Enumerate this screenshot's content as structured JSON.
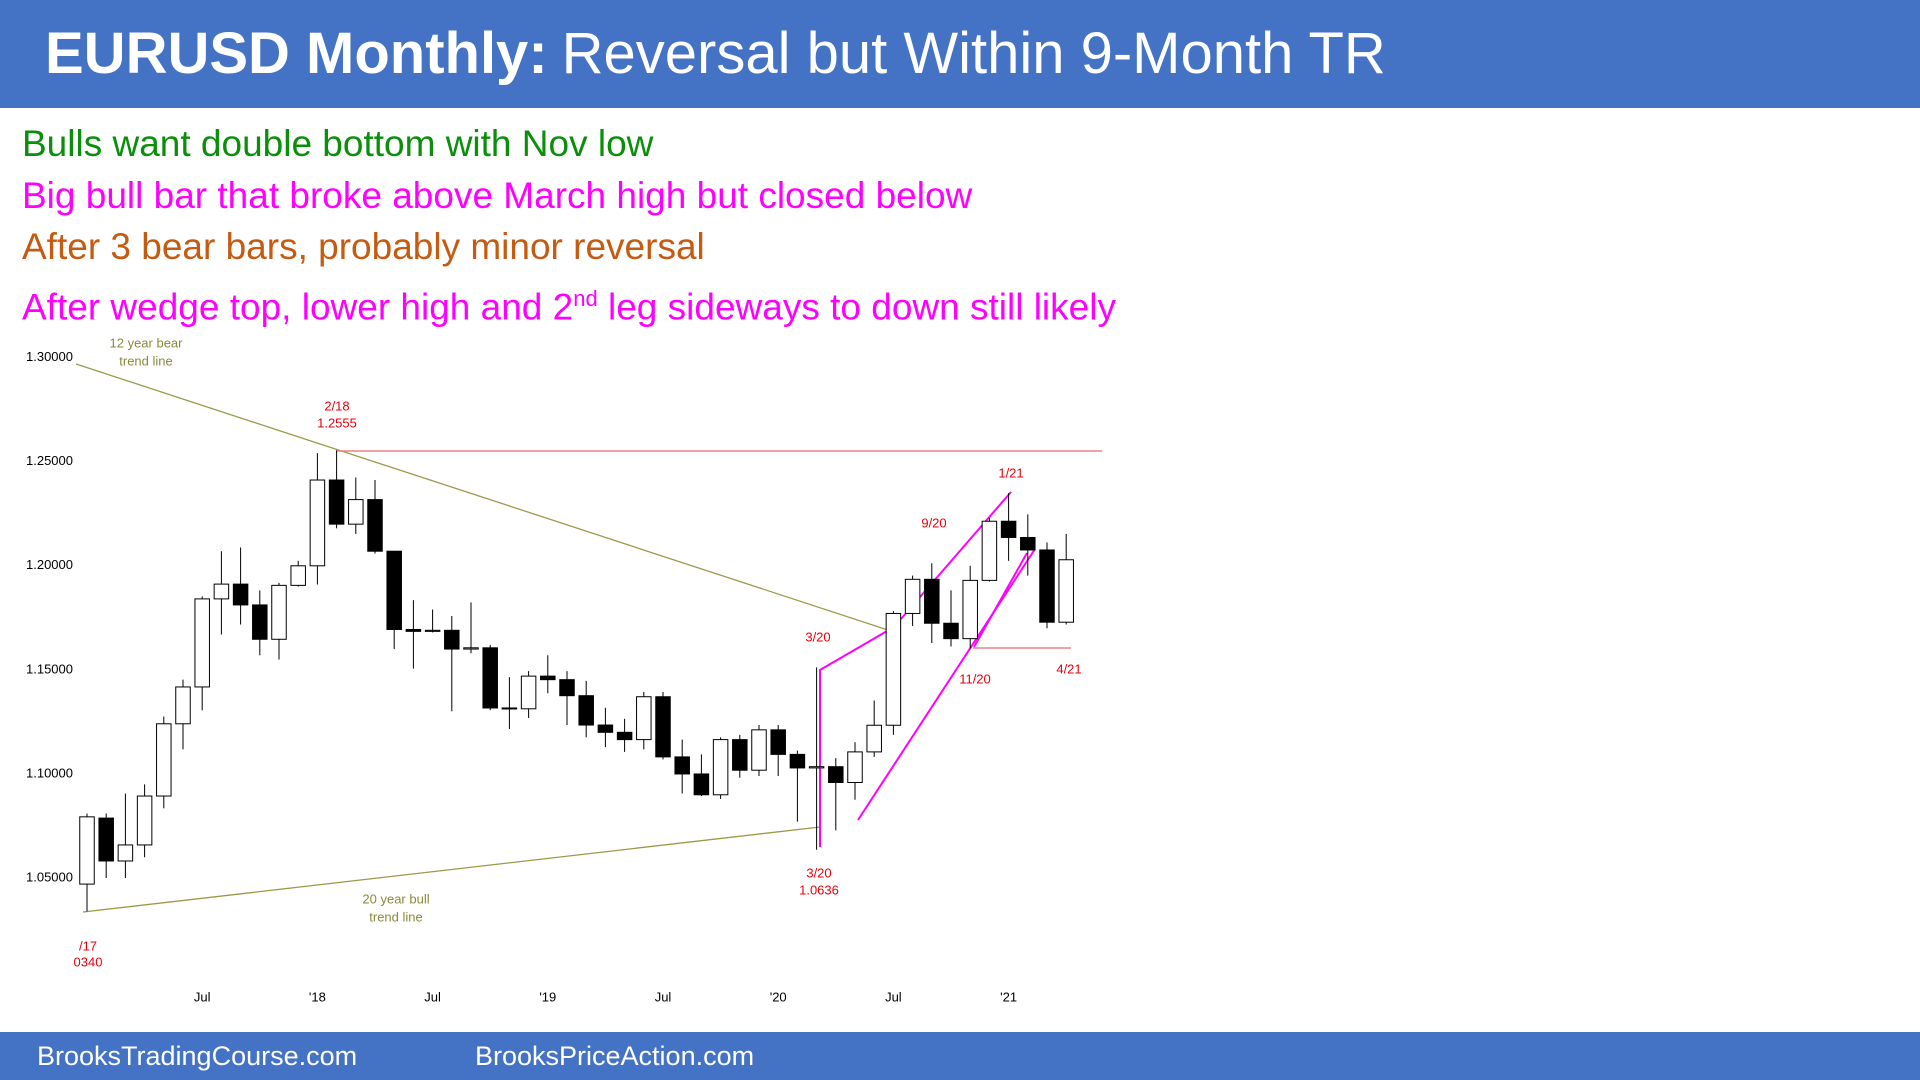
{
  "header": {
    "title_bold": "EURUSD Monthly:",
    "title_rest": "Reversal but Within 9-Month TR"
  },
  "bullets": [
    {
      "text": "Bulls want double bottom with Nov low"
    },
    {
      "text": "Big bull bar that broke above March high but closed below"
    },
    {
      "text": "After 3 bear bars, probably minor reversal"
    },
    {
      "text": "After wedge top, lower high and 2",
      "sup": "nd",
      "rest": " leg sideways to down still likely"
    }
  ],
  "chart_data": {
    "type": "candlestick",
    "categories": [
      null,
      null,
      null,
      null,
      null,
      null,
      "Jul",
      null,
      null,
      null,
      null,
      null,
      "'18",
      null,
      null,
      null,
      null,
      null,
      "Jul",
      null,
      null,
      null,
      null,
      null,
      "'19",
      null,
      null,
      null,
      null,
      null,
      "Jul",
      null,
      null,
      null,
      null,
      null,
      "'20",
      null,
      null,
      null,
      null,
      null,
      "Jul",
      null,
      null,
      null,
      null,
      null,
      "'21",
      null,
      null,
      null
    ],
    "open": [
      1.0471,
      1.0788,
      1.0582,
      1.0659,
      1.0894,
      1.1241,
      1.1418,
      1.1841,
      1.1912,
      1.1812,
      1.1647,
      1.1906,
      1.2,
      1.2412,
      1.22,
      1.2318,
      1.207,
      1.1694,
      1.1685,
      1.169,
      1.16,
      1.1606,
      1.1317,
      1.1313,
      1.147,
      1.1453,
      1.1376,
      1.1235,
      1.12,
      1.1165,
      1.1371,
      1.1082,
      1.1,
      1.09,
      1.1165,
      1.1018,
      1.1212,
      1.1094,
      1.1029,
      1.1035,
      1.0959,
      1.1106,
      1.1234,
      1.1771,
      1.1935,
      1.1724,
      1.165,
      1.193,
      1.2214,
      1.2136,
      1.2076,
      1.1729
    ],
    "high": [
      1.081,
      1.081,
      1.0906,
      1.095,
      1.1276,
      1.1453,
      1.1853,
      1.207,
      1.2088,
      1.1882,
      1.1918,
      1.2024,
      1.2541,
      1.2555,
      1.2424,
      1.2412,
      1.207,
      1.1835,
      1.179,
      1.1759,
      1.1824,
      1.162,
      1.1465,
      1.1494,
      1.157,
      1.1494,
      1.1447,
      1.1318,
      1.1265,
      1.1394,
      1.1394,
      1.1165,
      1.1094,
      1.1176,
      1.1188,
      1.1235,
      1.1235,
      1.1112,
      1.1512,
      1.1076,
      1.1153,
      1.1353,
      1.1782,
      1.1953,
      1.2012,
      1.1882,
      1.2,
      1.223,
      1.2349,
      1.2247,
      1.2112,
      1.2153
    ],
    "low": [
      1.034,
      1.05,
      1.05,
      1.06,
      1.0835,
      1.1118,
      1.1306,
      1.167,
      1.1718,
      1.157,
      1.155,
      1.19,
      1.191,
      1.218,
      1.2153,
      1.2059,
      1.16,
      1.1506,
      1.168,
      1.1301,
      1.158,
      1.1306,
      1.1216,
      1.1269,
      1.1388,
      1.1235,
      1.1176,
      1.1129,
      1.1106,
      1.1118,
      1.107,
      1.0906,
      1.0894,
      1.088,
      1.0982,
      1.099,
      1.099,
      1.0771,
      1.0636,
      1.0729,
      1.0876,
      1.1082,
      1.1188,
      1.1711,
      1.1629,
      1.1612,
      1.1603,
      1.1924,
      1.2024,
      1.1953,
      1.17,
      1.1718
    ],
    "close": [
      1.0794,
      1.0582,
      1.0659,
      1.0894,
      1.1241,
      1.1418,
      1.1841,
      1.1912,
      1.1812,
      1.1647,
      1.1906,
      1.2,
      1.2412,
      1.22,
      1.2318,
      1.207,
      1.1694,
      1.1685,
      1.169,
      1.16,
      1.1606,
      1.1317,
      1.1313,
      1.147,
      1.1453,
      1.1376,
      1.1235,
      1.12,
      1.1165,
      1.1371,
      1.1082,
      1.1,
      1.09,
      1.1165,
      1.1018,
      1.1212,
      1.1094,
      1.1029,
      1.1035,
      1.0959,
      1.1106,
      1.1234,
      1.1771,
      1.1935,
      1.1724,
      1.165,
      1.193,
      1.2214,
      1.2136,
      1.2076,
      1.1729,
      1.2029
    ],
    "up_color": "#ffffff",
    "down_color": "#000000",
    "ylim": [
      1.02,
      1.31
    ],
    "yticks": [
      {
        "value": 1.05,
        "label": "1.05000"
      },
      {
        "value": 1.1,
        "label": "1.10000"
      },
      {
        "value": 1.15,
        "label": "1.15000"
      },
      {
        "value": 1.2,
        "label": "1.20000"
      },
      {
        "value": 1.25,
        "label": "1.25000"
      },
      {
        "value": 1.3,
        "label": "1.30000"
      }
    ],
    "grid": false,
    "annotations": [
      "12 year bear",
      "trend line",
      "2/18",
      "1.2555",
      "1/21",
      "9/20",
      "3/20",
      "11/20",
      "4/21",
      "3/20",
      "1.0636",
      "20 year bull",
      "trend line",
      "/17",
      "0340"
    ]
  },
  "footer": {
    "left": "BrooksTradingCourse.com",
    "right": "BrooksPriceAction.com"
  }
}
